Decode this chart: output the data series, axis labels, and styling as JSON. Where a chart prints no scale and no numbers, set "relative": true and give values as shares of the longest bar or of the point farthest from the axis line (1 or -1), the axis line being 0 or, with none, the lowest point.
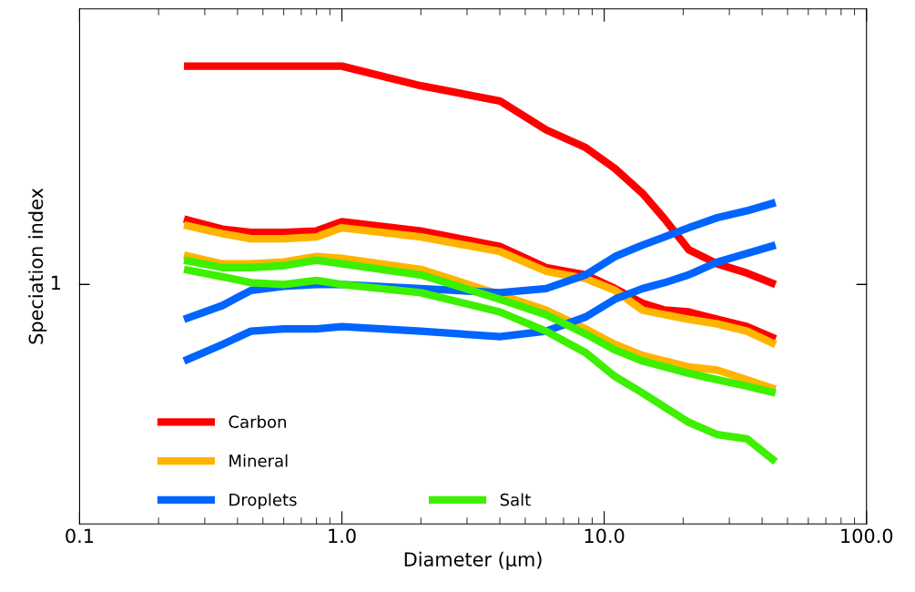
{
  "chart_data": {
    "type": "line",
    "xlabel": "Diameter (μm)",
    "ylabel": "Speciation index",
    "log": "x",
    "relative": true,
    "x": [
      0.25,
      0.35,
      0.45,
      0.6,
      0.8,
      1.0,
      2.0,
      4.0,
      6.0,
      8.5,
      11,
      14,
      17,
      21,
      27,
      35,
      45
    ],
    "xlim": [
      0.1,
      100
    ],
    "xticks": [
      {
        "value": 0.1,
        "label": "0.1"
      },
      {
        "value": 1,
        "label": "1.0"
      },
      {
        "value": 10,
        "label": "10.0"
      },
      {
        "value": 100,
        "label": "100.0"
      }
    ],
    "annotations": [
      "1"
    ],
    "grid": false,
    "legend": "bottom left",
    "line_style": "solid",
    "marker": "none",
    "series": [
      {
        "name": "Carbon",
        "color": "#ff0000",
        "values": [
          1.0,
          1.0,
          1.0,
          1.0,
          1.0,
          1.0,
          0.957,
          0.924,
          0.861,
          0.822,
          0.776,
          0.722,
          0.666,
          0.599,
          0.568,
          0.548,
          0.523
        ]
      },
      {
        "color": "#ff0000",
        "values": [
          0.666,
          0.644,
          0.637,
          0.637,
          0.64,
          0.66,
          0.64,
          0.606,
          0.56,
          0.544,
          0.514,
          0.482,
          0.467,
          0.463,
          0.447,
          0.431,
          0.404
        ]
      },
      {
        "name": "Mineral",
        "color": "#ffb400",
        "values": [
          0.653,
          0.634,
          0.623,
          0.623,
          0.627,
          0.647,
          0.627,
          0.595,
          0.552,
          0.536,
          0.51,
          0.467,
          0.457,
          0.447,
          0.437,
          0.421,
          0.392
        ]
      },
      {
        "color": "#ffb400",
        "values": [
          0.587,
          0.568,
          0.568,
          0.572,
          0.584,
          0.58,
          0.556,
          0.501,
          0.467,
          0.426,
          0.392,
          0.368,
          0.356,
          0.343,
          0.336,
          0.315,
          0.294
        ]
      },
      {
        "name": "Droplets",
        "color": "#0064ff",
        "values": [
          0.447,
          0.477,
          0.51,
          0.519,
          0.523,
          0.523,
          0.514,
          0.505,
          0.514,
          0.544,
          0.584,
          0.609,
          0.627,
          0.647,
          0.669,
          0.684,
          0.702
        ]
      },
      {
        "color": "#0064ff",
        "values": [
          0.356,
          0.392,
          0.421,
          0.426,
          0.426,
          0.431,
          0.421,
          0.409,
          0.421,
          0.452,
          0.491,
          0.514,
          0.527,
          0.544,
          0.572,
          0.591,
          0.609
        ]
      },
      {
        "name": "Salt",
        "color": "#3cf000",
        "values": [
          0.576,
          0.56,
          0.56,
          0.564,
          0.576,
          0.568,
          0.544,
          0.491,
          0.457,
          0.415,
          0.38,
          0.356,
          0.343,
          0.329,
          0.315,
          0.301,
          0.286
        ]
      },
      {
        "color": "#3cf000",
        "values": [
          0.556,
          0.54,
          0.527,
          0.523,
          0.532,
          0.523,
          0.505,
          0.463,
          0.421,
          0.374,
          0.322,
          0.286,
          0.255,
          0.222,
          0.195,
          0.186,
          0.136
        ]
      }
    ]
  }
}
